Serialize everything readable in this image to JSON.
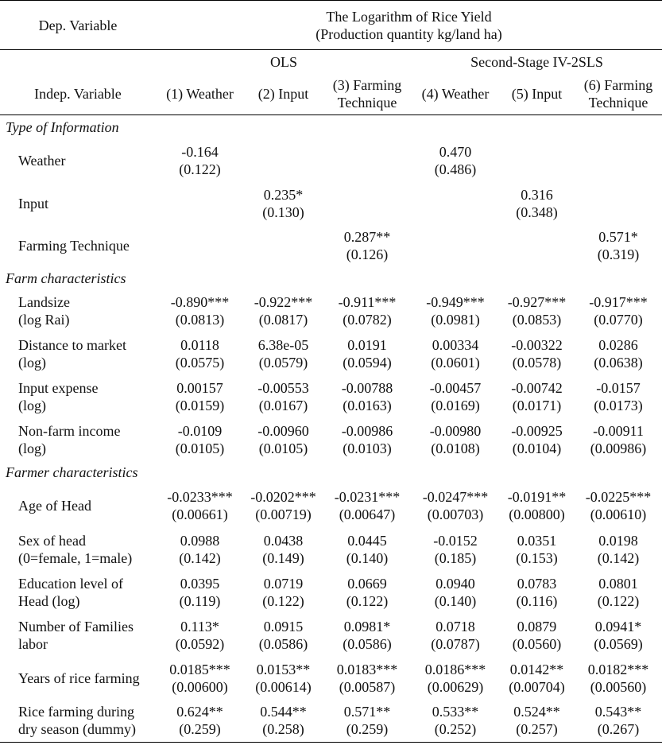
{
  "header": {
    "dep_variable_label": "Dep. Variable",
    "dep_variable_line1": "The Logarithm of Rice Yield",
    "dep_variable_line2": "(Production quantity kg/land ha)",
    "ols_label": "OLS",
    "iv_label": "Second-Stage IV-2SLS",
    "indep_variable_label": "Indep. Variable",
    "columns": [
      {
        "line1": "(1) Weather",
        "line2": ""
      },
      {
        "line1": "(2) Input",
        "line2": ""
      },
      {
        "line1": "(3) Farming",
        "line2": "Technique"
      },
      {
        "line1": "(4) Weather",
        "line2": ""
      },
      {
        "line1": "(5) Input",
        "line2": ""
      },
      {
        "line1": "(6) Farming",
        "line2": "Technique"
      }
    ]
  },
  "sections": [
    {
      "title": "Type of Information",
      "rows": [
        {
          "label1": "Weather",
          "label2": "",
          "coef": [
            "-0.164",
            "",
            "",
            "0.470",
            "",
            ""
          ],
          "se": [
            "(0.122)",
            "",
            "",
            "(0.486)",
            "",
            ""
          ]
        },
        {
          "label1": "Input",
          "label2": "",
          "coef": [
            "",
            "0.235*",
            "",
            "",
            "0.316",
            ""
          ],
          "se": [
            "",
            "(0.130)",
            "",
            "",
            "(0.348)",
            ""
          ]
        },
        {
          "label1": "Farming Technique",
          "label2": "",
          "coef": [
            "",
            "",
            "0.287**",
            "",
            "",
            "0.571*"
          ],
          "se": [
            "",
            "",
            "(0.126)",
            "",
            "",
            "(0.319)"
          ]
        }
      ]
    },
    {
      "title": "Farm characteristics",
      "rows": [
        {
          "label1": "Landsize",
          "label2": "(log Rai)",
          "coef": [
            "-0.890***",
            "-0.922***",
            "-0.911***",
            "-0.949***",
            "-0.927***",
            "-0.917***"
          ],
          "se": [
            "(0.0813)",
            "(0.0817)",
            "(0.0782)",
            "(0.0981)",
            "(0.0853)",
            "(0.0770)"
          ]
        },
        {
          "label1": "Distance to market",
          "label2": "(log)",
          "coef": [
            "0.0118",
            "6.38e-05",
            "0.0191",
            "0.00334",
            "-0.00322",
            "0.0286"
          ],
          "se": [
            "(0.0575)",
            "(0.0579)",
            "(0.0594)",
            "(0.0601)",
            "(0.0578)",
            "(0.0638)"
          ]
        },
        {
          "label1": "Input expense",
          "label2": "(log)",
          "coef": [
            "0.00157",
            "-0.00553",
            "-0.00788",
            "-0.00457",
            "-0.00742",
            "-0.0157"
          ],
          "se": [
            "(0.0159)",
            "(0.0167)",
            "(0.0163)",
            "(0.0169)",
            "(0.0171)",
            "(0.0173)"
          ]
        },
        {
          "label1": "Non-farm income",
          "label2": "(log)",
          "coef": [
            "-0.0109",
            "-0.00960",
            "-0.00986",
            "-0.00980",
            "-0.00925",
            "-0.00911"
          ],
          "se": [
            "(0.0105)",
            "(0.0105)",
            "(0.0103)",
            "(0.0108)",
            "(0.0104)",
            "(0.00986)"
          ]
        }
      ]
    },
    {
      "title": "Farmer characteristics",
      "rows": [
        {
          "label1": "Age of Head",
          "label2": "",
          "coef": [
            "-0.0233***",
            "-0.0202***",
            "-0.0231***",
            "-0.0247***",
            "-0.0191**",
            "-0.0225***"
          ],
          "se": [
            "(0.00661)",
            "(0.00719)",
            "(0.00647)",
            "(0.00703)",
            "(0.00800)",
            "(0.00610)"
          ]
        },
        {
          "label1": "Sex of head",
          "label2": "(0=female, 1=male)",
          "coef": [
            "0.0988",
            "0.0438",
            "0.0445",
            "-0.0152",
            "0.0351",
            "0.0198"
          ],
          "se": [
            "(0.142)",
            "(0.149)",
            "(0.140)",
            "(0.185)",
            "(0.153)",
            "(0.142)"
          ]
        },
        {
          "label1": "Education level of",
          "label2": "Head (log)",
          "coef": [
            "0.0395",
            "0.0719",
            "0.0669",
            "0.0940",
            "0.0783",
            "0.0801"
          ],
          "se": [
            "(0.119)",
            "(0.122)",
            "(0.122)",
            "(0.140)",
            "(0.116)",
            "(0.122)"
          ]
        },
        {
          "label1": "Number of Families",
          "label2": "labor",
          "coef": [
            "0.113*",
            "0.0915",
            "0.0981*",
            "0.0718",
            "0.0879",
            "0.0941*"
          ],
          "se": [
            "(0.0592)",
            "(0.0586)",
            "(0.0586)",
            "(0.0787)",
            "(0.0560)",
            "(0.0569)"
          ]
        },
        {
          "label1": "Years of rice farming",
          "label2": "",
          "coef": [
            "0.0185***",
            "0.0153**",
            "0.0183***",
            "0.0186***",
            "0.0142**",
            "0.0182***"
          ],
          "se": [
            "(0.00600)",
            "(0.00614)",
            "(0.00587)",
            "(0.00629)",
            "(0.00704)",
            "(0.00560)"
          ]
        },
        {
          "label1": "Rice farming during",
          "label2": "dry season (dummy)",
          "coef": [
            "0.624**",
            "0.544**",
            "0.571**",
            "0.533**",
            "0.524**",
            "0.543**"
          ],
          "se": [
            "(0.259)",
            "(0.258)",
            "(0.259)",
            "(0.252)",
            "(0.257)",
            "(0.267)"
          ]
        }
      ]
    }
  ]
}
